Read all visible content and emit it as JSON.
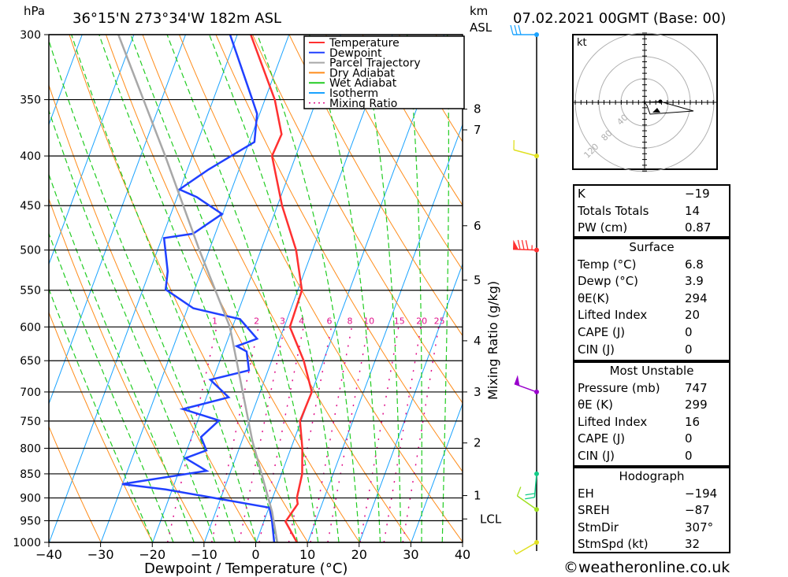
{
  "header": {
    "pressure_unit": "hPa",
    "location": "36°15'N 273°34'W 182m ASL",
    "km_unit": "km",
    "km_asl": "ASL",
    "datetime": "07.02.2021 00GMT (Base: 00)"
  },
  "chart_data": {
    "type": "line",
    "title": "36°15'N 273°34'W 182m ASL",
    "xlabel": "Dewpoint / Temperature (°C)",
    "ylabel": "hPa",
    "right_label": "Mixing Ratio (g/kg)",
    "xlim": [
      -40,
      40
    ],
    "ylim": [
      1000,
      300
    ],
    "x_ticks": [
      "−40",
      "−30",
      "−20",
      "−10",
      "0",
      "10",
      "20",
      "30",
      "40"
    ],
    "x_tick_values": [
      -40,
      -30,
      -20,
      -10,
      0,
      10,
      20,
      30,
      40
    ],
    "y_ticks": [
      "300",
      "350",
      "400",
      "450",
      "500",
      "550",
      "600",
      "650",
      "700",
      "750",
      "800",
      "850",
      "900",
      "950",
      "1000"
    ],
    "y_tick_values": [
      300,
      350,
      400,
      450,
      500,
      550,
      600,
      650,
      700,
      750,
      800,
      850,
      900,
      950,
      1000
    ],
    "km_ticks": [
      {
        "label": "8",
        "p": 358
      },
      {
        "label": "7",
        "p": 376
      },
      {
        "label": "6",
        "p": 472
      },
      {
        "label": "5",
        "p": 537
      },
      {
        "label": "4",
        "p": 620
      },
      {
        "label": "3",
        "p": 700
      },
      {
        "label": "2",
        "p": 790
      },
      {
        "label": "1",
        "p": 895
      },
      {
        "label": "LCL",
        "p": 946
      }
    ],
    "mixing_ratio_labels": [
      "1",
      "2",
      "3",
      "4",
      "6",
      "8",
      "10",
      "15",
      "20",
      "25"
    ],
    "mixing_ratio_values": [
      1,
      2,
      3,
      4,
      6,
      8,
      10,
      15,
      20,
      25
    ],
    "legend": [
      {
        "label": "Temperature",
        "color": "#ff3030",
        "style": "solid"
      },
      {
        "label": "Dewpoint",
        "color": "#2040ff",
        "style": "solid"
      },
      {
        "label": "Parcel Trajectory",
        "color": "#a8a8a8",
        "style": "solid"
      },
      {
        "label": "Dry Adiabat",
        "color": "#ff8c1a",
        "style": "solid"
      },
      {
        "label": "Wet Adiabat",
        "color": "#22cc22",
        "style": "solid"
      },
      {
        "label": "Isotherm",
        "color": "#1aa3ff",
        "style": "solid"
      },
      {
        "label": "Mixing Ratio",
        "color": "#e0108a",
        "style": "dotted"
      }
    ],
    "legend_position": "top-right",
    "series": [
      {
        "name": "Temperature",
        "color": "#ff3030",
        "points": [
          [
            1000,
            7.9
          ],
          [
            952,
            4.2
          ],
          [
            913,
            5.3
          ],
          [
            900,
            4.7
          ],
          [
            850,
            4.0
          ],
          [
            800,
            2.2
          ],
          [
            750,
            -0.2
          ],
          [
            700,
            0.0
          ],
          [
            650,
            -3.8
          ],
          [
            600,
            -8.9
          ],
          [
            550,
            -9.2
          ],
          [
            500,
            -13.2
          ],
          [
            450,
            -19.1
          ],
          [
            400,
            -24.6
          ],
          [
            380,
            -24.3
          ],
          [
            350,
            -28.1
          ],
          [
            300,
            -37.4
          ]
        ]
      },
      {
        "name": "Dewpoint",
        "color": "#2040ff",
        "points": [
          [
            1000,
            3.5
          ],
          [
            947,
            1.4
          ],
          [
            921,
            0.1
          ],
          [
            882,
            -21.3
          ],
          [
            871,
            -30.1
          ],
          [
            844,
            -14.7
          ],
          [
            819,
            -19.7
          ],
          [
            804,
            -16.2
          ],
          [
            779,
            -18.2
          ],
          [
            749,
            -15.9
          ],
          [
            729,
            -23.7
          ],
          [
            709,
            -15.7
          ],
          [
            680,
            -20.5
          ],
          [
            665,
            -13.7
          ],
          [
            636,
            -15.5
          ],
          [
            628,
            -17.8
          ],
          [
            617,
            -14.4
          ],
          [
            589,
            -19.1
          ],
          [
            574,
            -28.9
          ],
          [
            549,
            -35.6
          ],
          [
            526,
            -36.5
          ],
          [
            486,
            -39.6
          ],
          [
            481,
            -34.3
          ],
          [
            459,
            -30.1
          ],
          [
            441,
            -36.2
          ],
          [
            433,
            -40.1
          ],
          [
            413,
            -35.9
          ],
          [
            387,
            -29.0
          ],
          [
            362,
            -30.5
          ],
          [
            349,
            -32.6
          ],
          [
            300,
            -41.4
          ]
        ]
      },
      {
        "name": "Parcel Trajectory",
        "color": "#a8a8a8",
        "points": [
          [
            1000,
            4.1
          ],
          [
            930,
            0.9
          ],
          [
            786,
            -8.0
          ],
          [
            600,
            -20.5
          ],
          [
            500,
            -31.9
          ],
          [
            401,
            -45.1
          ],
          [
            300,
            -63.0
          ]
        ]
      }
    ],
    "winds": [
      {
        "p": 300,
        "dir": 270,
        "speed": 30,
        "color": "#1aa3ff"
      },
      {
        "p": 400,
        "dir": 285,
        "speed": 10,
        "color": "#e0e020"
      },
      {
        "p": 500,
        "dir": 272,
        "speed": 85,
        "color": "#ff3030"
      },
      {
        "p": 700,
        "dir": 290,
        "speed": 50,
        "color": "#9900cc"
      },
      {
        "p": 850,
        "dir": 185,
        "speed": 20,
        "color": "#11cc88"
      },
      {
        "p": 925,
        "dir": 305,
        "speed": 10,
        "color": "#a0e020"
      },
      {
        "p": 1000,
        "dir": 240,
        "speed": 5,
        "color": "#e0e020"
      }
    ]
  },
  "hodograph": {
    "unit": "kt",
    "ring_labels": [
      "40",
      "80",
      "120"
    ]
  },
  "indices": {
    "rows": [
      {
        "label": "K",
        "value": "−19"
      },
      {
        "label": "Totals Totals",
        "value": "14"
      },
      {
        "label": "PW (cm)",
        "value": "0.87"
      }
    ]
  },
  "surface": {
    "title": "Surface",
    "rows": [
      {
        "label": "Temp (°C)",
        "value": "6.8"
      },
      {
        "label": "Dewp (°C)",
        "value": "3.9"
      },
      {
        "label": "θE(K)",
        "value": "294"
      },
      {
        "label": "Lifted Index",
        "value": "20"
      },
      {
        "label": "CAPE (J)",
        "value": "0"
      },
      {
        "label": "CIN (J)",
        "value": "0"
      }
    ]
  },
  "most_unstable": {
    "title": "Most Unstable",
    "rows": [
      {
        "label": "Pressure (mb)",
        "value": "747"
      },
      {
        "label": "θE (K)",
        "value": "299"
      },
      {
        "label": "Lifted Index",
        "value": "16"
      },
      {
        "label": "CAPE (J)",
        "value": "0"
      },
      {
        "label": "CIN (J)",
        "value": "0"
      }
    ]
  },
  "hodo_stats": {
    "title": "Hodograph",
    "rows": [
      {
        "label": "EH",
        "value": "−194"
      },
      {
        "label": "SREH",
        "value": "−87"
      },
      {
        "label": "StmDir",
        "value": "307°"
      },
      {
        "label": "StmSpd (kt)",
        "value": "32"
      }
    ]
  },
  "footer": {
    "copyright": "©weatheronline.co.uk"
  }
}
